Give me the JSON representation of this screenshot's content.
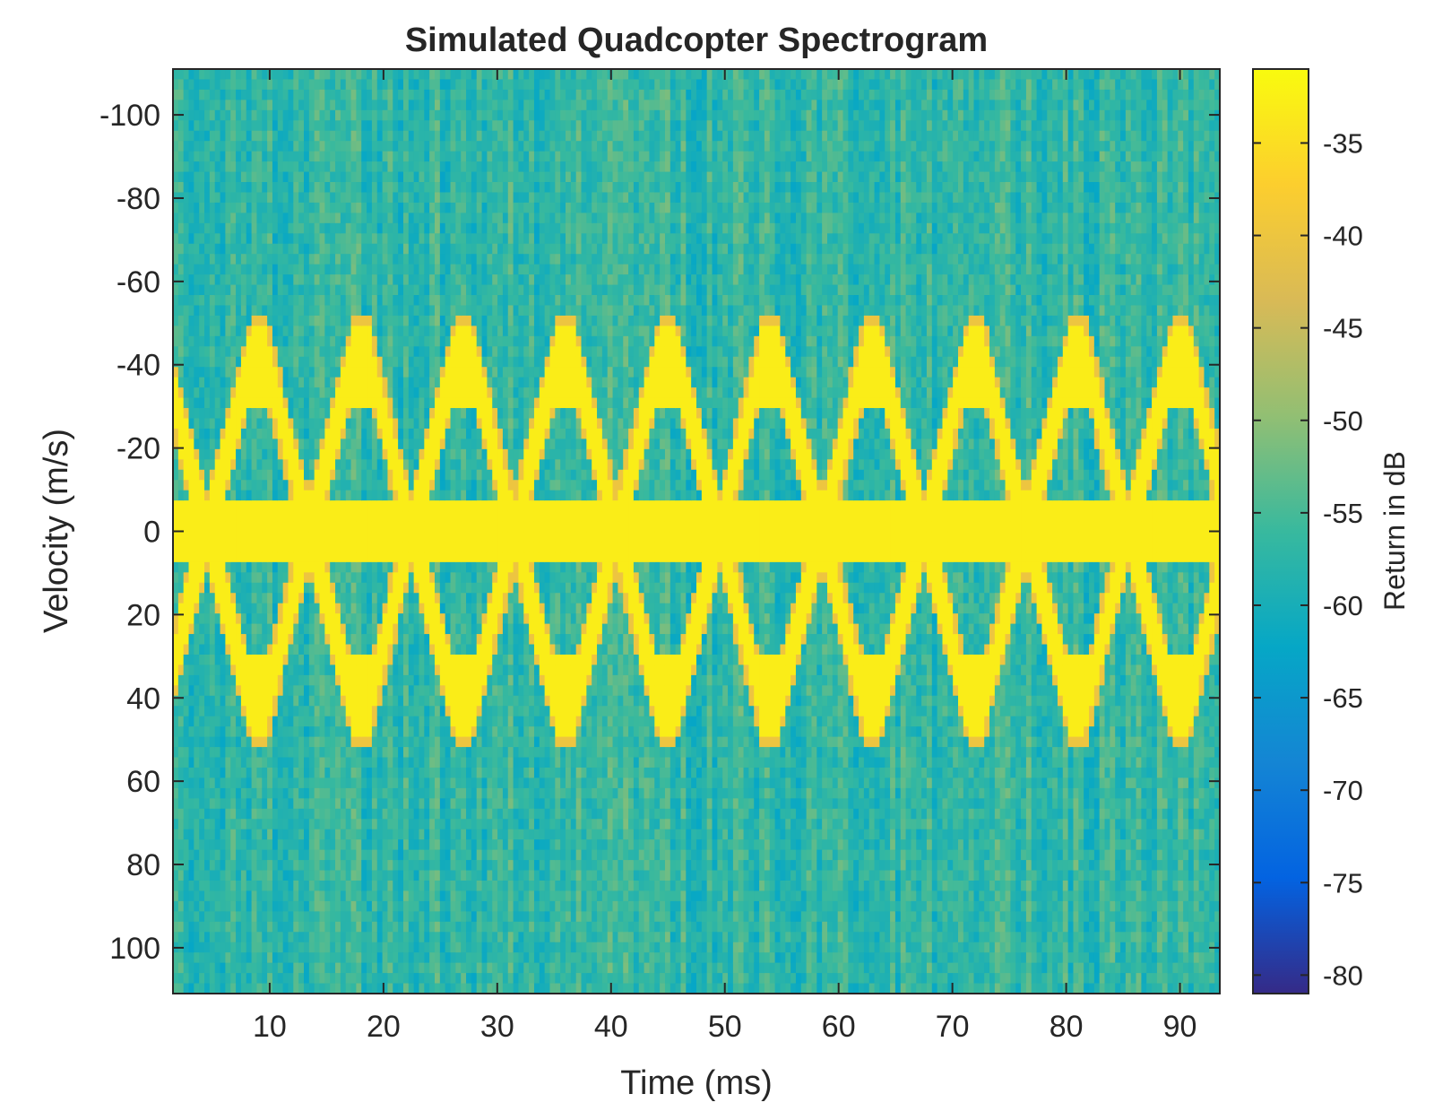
{
  "chart_data": {
    "type": "heatmap",
    "title": "Simulated Quadcopter Spectrogram",
    "xlabel": "Time (ms)",
    "ylabel": "Velocity (m/s)",
    "xlim": [
      1.5,
      93.5
    ],
    "ylim": [
      -111,
      111
    ],
    "y_direction": "reverse",
    "xticks": [
      10,
      20,
      30,
      40,
      50,
      60,
      70,
      80,
      90
    ],
    "yticks": [
      -100,
      -80,
      -60,
      -40,
      -20,
      0,
      20,
      40,
      60,
      80,
      100
    ],
    "colormap": "parula",
    "colorbar": {
      "label": "Return in dB",
      "range": [
        -81,
        -31
      ],
      "ticks": [
        -35,
        -40,
        -45,
        -50,
        -55,
        -60,
        -65,
        -70,
        -75,
        -80
      ],
      "colors": [
        "#352a87",
        "#0363e1",
        "#1485d4",
        "#06a7c6",
        "#38b99e",
        "#92bf73",
        "#d9ba56",
        "#fcce2e",
        "#f9fb0e"
      ]
    },
    "background_level_db": -57,
    "noise_level_db": 3,
    "body_line": {
      "velocity": 0,
      "half_width": 8,
      "level_db": -33
    },
    "blade_flash": {
      "period_ms": 9,
      "phase_ms": 4.5,
      "max_velocity": 43,
      "flat_velocity": 30,
      "level_db": -33,
      "edge_level_db": -40,
      "halo_level_db": -50
    }
  }
}
